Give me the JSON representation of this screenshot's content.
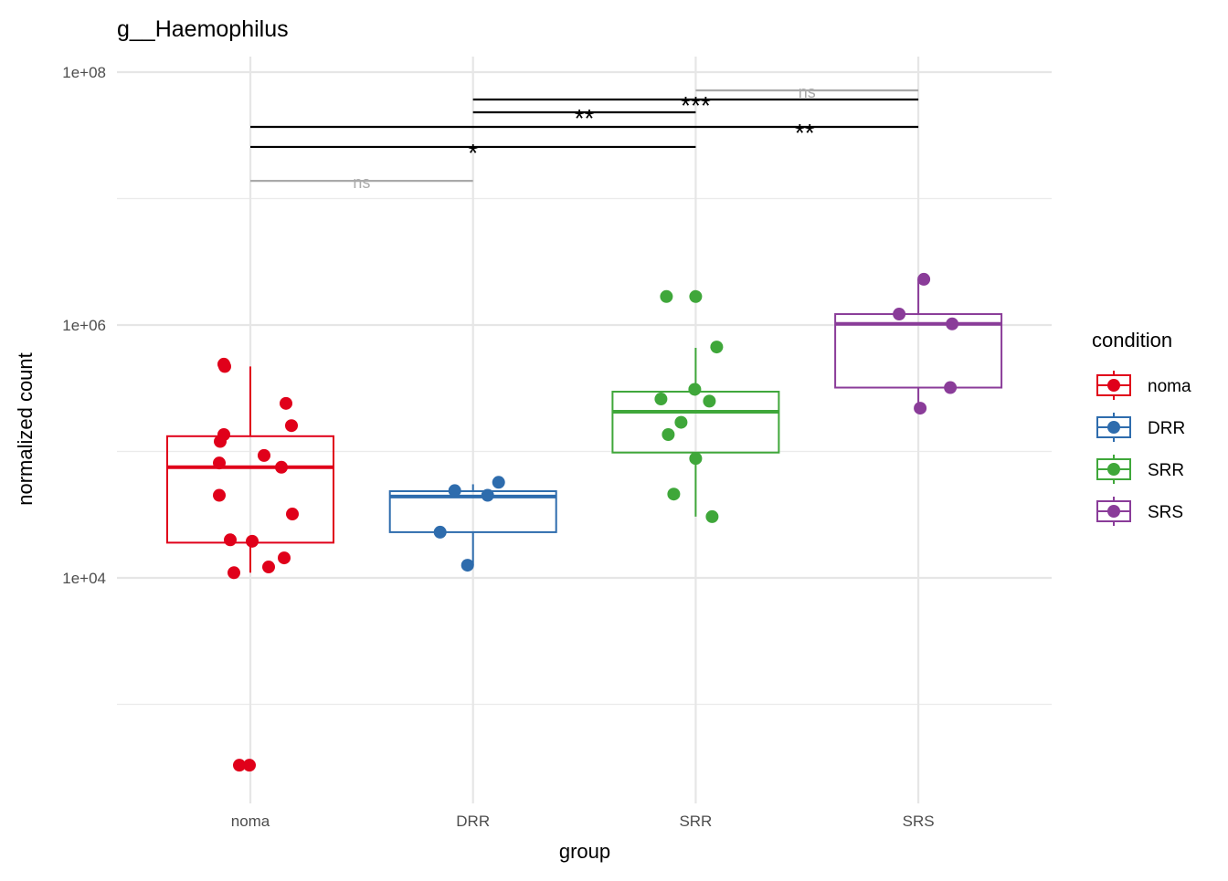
{
  "chart_data": {
    "type": "box",
    "title": "g__Haemophilus",
    "xlabel": "group",
    "ylabel": "normalized count",
    "y_scale": "log10",
    "ylim": [
      165,
      130000000
    ],
    "y_ticks": [
      {
        "value": 10000,
        "label": "1e+04"
      },
      {
        "value": 1000000,
        "label": "1e+06"
      },
      {
        "value": 100000000,
        "label": "1e+08"
      }
    ],
    "y_minor_grid": [
      1000,
      100000,
      10000000
    ],
    "grid": true,
    "categories": [
      "noma",
      "DRR",
      "SRR",
      "SRS"
    ],
    "legend": {
      "title": "condition",
      "position": "right",
      "entries": [
        "noma",
        "DRR",
        "SRR",
        "SRS"
      ]
    },
    "colors": {
      "noma": "#e0001a",
      "DRR": "#2e6cad",
      "SRR": "#3fa73a",
      "SRS": "#8a3c99"
    },
    "boxes": [
      {
        "group": "noma",
        "whisker_low": 11000,
        "q1": 19000,
        "median": 75000,
        "q3": 132000,
        "whisker_high": 470000
      },
      {
        "group": "DRR",
        "whisker_low": 12600,
        "q1": 23000,
        "median": 44000,
        "q3": 48500,
        "whisker_high": 55000
      },
      {
        "group": "SRR",
        "whisker_low": 30500,
        "q1": 98000,
        "median": 206000,
        "q3": 297000,
        "whisker_high": 660000
      },
      {
        "group": "SRS",
        "whisker_low": 220000,
        "q1": 320000,
        "median": 1020000,
        "q3": 1220000,
        "whisker_high": 2300000
      }
    ],
    "points": {
      "noma": [
        490000,
        470000,
        240000,
        160000,
        136000,
        120000,
        93000,
        81000,
        75000,
        45000,
        32000,
        20000,
        19500,
        14400,
        12200,
        11000,
        330,
        330
      ],
      "DRR": [
        57000,
        49000,
        45000,
        23000,
        12600
      ],
      "SRR": [
        1680000,
        1680000,
        670000,
        310000,
        260000,
        250000,
        170000,
        136000,
        88000,
        46000,
        30500
      ],
      "SRS": [
        2300000,
        1220000,
        1020000,
        320000,
        220000
      ]
    },
    "comparisons": [
      {
        "from": "noma",
        "to": "DRR",
        "y": 13800000,
        "label": "ns",
        "significant": false
      },
      {
        "from": "noma",
        "to": "SRR",
        "y": 25600000,
        "label": "*",
        "significant": true
      },
      {
        "from": "noma",
        "to": "SRS",
        "y": 36900000,
        "label": "**",
        "significant": true
      },
      {
        "from": "DRR",
        "to": "SRR",
        "y": 48100000,
        "label": "**",
        "significant": true
      },
      {
        "from": "DRR",
        "to": "SRS",
        "y": 60700000,
        "label": "***",
        "significant": true
      },
      {
        "from": "SRR",
        "to": "SRS",
        "y": 71700000,
        "label": "ns",
        "significant": false
      }
    ]
  }
}
